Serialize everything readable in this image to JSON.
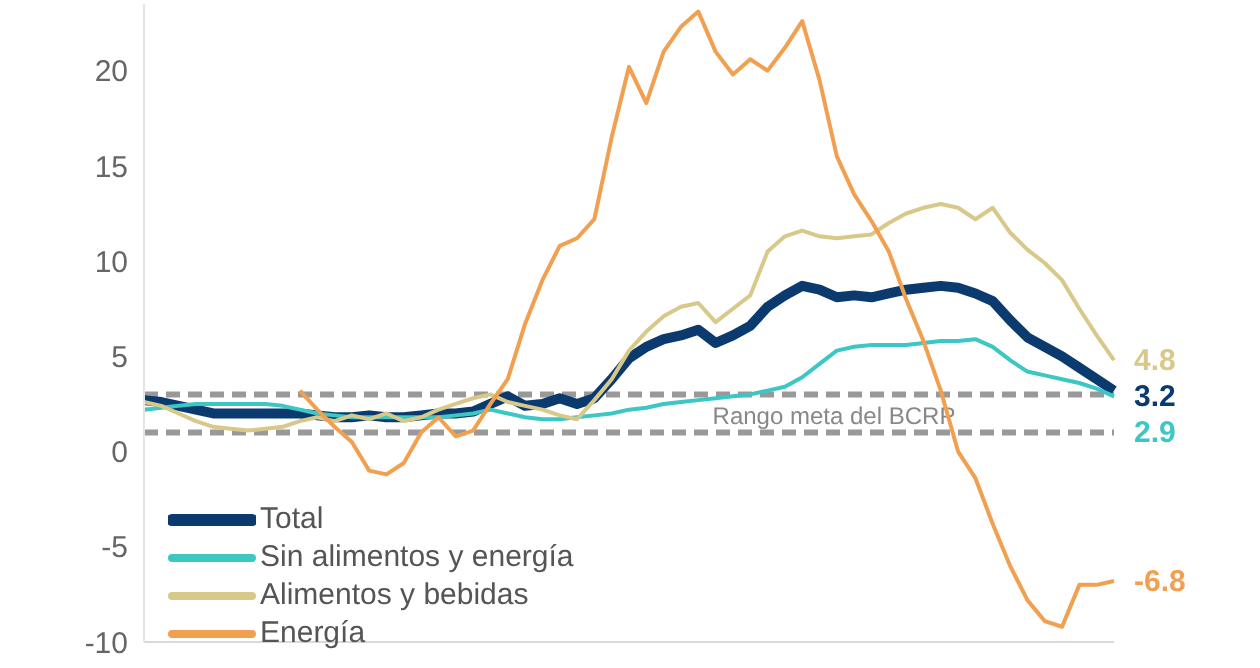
{
  "chart_data": {
    "type": "line",
    "categories": [
      null,
      null,
      null,
      null,
      null,
      null,
      null,
      null,
      null,
      null,
      null,
      null,
      null,
      null,
      null,
      null,
      null,
      null,
      null,
      null,
      null,
      null,
      null,
      null,
      null,
      null,
      null,
      null,
      null,
      null,
      null,
      null,
      null,
      null,
      null,
      null,
      null,
      null,
      null,
      null,
      null,
      null,
      null,
      null,
      null,
      null,
      null,
      null,
      null,
      null,
      null,
      null,
      null,
      null,
      null,
      null,
      null
    ],
    "series": [
      {
        "name": "Total",
        "color": "#0b3a6e",
        "values": [
          2.7,
          2.6,
          2.4,
          2.2,
          2.0,
          2.0,
          2.0,
          2.0,
          2.0,
          2.0,
          1.9,
          1.8,
          1.8,
          1.9,
          1.8,
          1.8,
          1.9,
          2.0,
          2.0,
          2.1,
          2.5,
          2.9,
          2.4,
          2.5,
          2.8,
          2.5,
          2.8,
          3.8,
          4.9,
          5.5,
          5.9,
          6.1,
          6.4,
          5.7,
          6.1,
          6.6,
          7.6,
          8.2,
          8.7,
          8.5,
          8.1,
          8.2,
          8.1,
          8.3,
          8.5,
          8.6,
          8.7,
          8.6,
          8.3,
          7.9,
          6.9,
          6.0,
          5.5,
          5.0,
          4.4,
          3.8,
          3.2
        ],
        "value_labels": [
          null,
          null,
          null,
          null,
          null,
          null,
          null,
          null,
          null,
          null,
          null,
          null,
          null,
          null,
          null,
          null,
          null,
          null,
          null,
          null,
          null,
          null,
          null,
          null,
          null,
          null,
          null,
          null,
          null,
          null,
          null,
          null,
          null,
          null,
          null,
          null,
          null,
          null,
          null,
          null,
          null,
          null,
          null,
          null,
          null,
          null,
          null,
          null,
          null,
          null,
          null,
          null,
          null,
          null,
          null,
          null,
          "3.2"
        ]
      },
      {
        "name": "Sin alimentos y energía",
        "color": "#3cc6c4",
        "values": [
          2.2,
          2.3,
          2.4,
          2.5,
          2.5,
          2.5,
          2.5,
          2.5,
          2.4,
          2.2,
          2.0,
          1.9,
          1.8,
          1.8,
          1.8,
          1.8,
          1.8,
          1.8,
          1.9,
          2.0,
          2.2,
          2.0,
          1.8,
          1.7,
          1.7,
          1.8,
          1.9,
          2.0,
          2.2,
          2.3,
          2.5,
          2.6,
          2.7,
          2.8,
          2.9,
          3.0,
          3.2,
          3.4,
          3.9,
          4.6,
          5.3,
          5.5,
          5.6,
          5.6,
          5.6,
          5.7,
          5.8,
          5.8,
          5.9,
          5.5,
          4.8,
          4.2,
          4.0,
          3.8,
          3.6,
          3.3,
          2.9
        ],
        "value_labels": [
          null,
          null,
          null,
          null,
          null,
          null,
          null,
          null,
          null,
          null,
          null,
          null,
          null,
          null,
          null,
          null,
          null,
          null,
          null,
          null,
          null,
          null,
          null,
          null,
          null,
          null,
          null,
          null,
          null,
          null,
          null,
          null,
          null,
          null,
          null,
          null,
          null,
          null,
          null,
          null,
          null,
          null,
          null,
          null,
          null,
          null,
          null,
          null,
          null,
          null,
          null,
          null,
          null,
          null,
          null,
          null,
          "2.9"
        ]
      },
      {
        "name": "Alimentos y bebidas",
        "color": "#d8c88a",
        "values": [
          2.6,
          2.4,
          2.0,
          1.6,
          1.3,
          1.2,
          1.1,
          1.2,
          1.3,
          1.6,
          1.8,
          1.6,
          1.9,
          1.7,
          2.0,
          1.6,
          1.8,
          2.2,
          2.5,
          2.8,
          3.0,
          2.6,
          2.4,
          2.2,
          1.9,
          1.7,
          2.7,
          3.8,
          5.3,
          6.3,
          7.1,
          7.6,
          7.8,
          6.8,
          7.5,
          8.2,
          10.5,
          11.3,
          11.6,
          11.3,
          11.2,
          11.3,
          11.4,
          12.0,
          12.5,
          12.8,
          13.0,
          12.8,
          12.2,
          12.8,
          11.5,
          10.6,
          9.9,
          9.0,
          7.5,
          6.1,
          4.8
        ],
        "value_labels": [
          null,
          null,
          null,
          null,
          null,
          null,
          null,
          null,
          null,
          null,
          null,
          null,
          null,
          null,
          null,
          null,
          null,
          null,
          null,
          null,
          null,
          null,
          null,
          null,
          null,
          null,
          null,
          null,
          null,
          null,
          null,
          null,
          null,
          null,
          null,
          null,
          null,
          null,
          null,
          null,
          null,
          null,
          null,
          null,
          null,
          null,
          null,
          null,
          null,
          null,
          null,
          null,
          null,
          null,
          null,
          null,
          "4.8"
        ]
      },
      {
        "name": "Energía",
        "color": "#f0a050",
        "values": [
          null,
          null,
          null,
          null,
          null,
          null,
          null,
          null,
          null,
          3.2,
          2.2,
          1.3,
          0.5,
          -1.0,
          -1.2,
          -0.6,
          1.0,
          1.8,
          0.8,
          1.1,
          2.5,
          3.8,
          6.7,
          9.0,
          10.8,
          11.2,
          12.2,
          16.5,
          20.2,
          18.3,
          21.0,
          22.3,
          23.1,
          21.0,
          19.8,
          20.6,
          20.0,
          21.2,
          22.6,
          19.5,
          15.5,
          13.5,
          12.1,
          10.5,
          8.0,
          5.8,
          3.2,
          0.0,
          -1.4,
          -3.8,
          -6.0,
          -7.8,
          -8.9,
          -9.2,
          -7.0,
          -7.0,
          -6.8
        ],
        "value_labels": [
          null,
          null,
          null,
          null,
          null,
          null,
          null,
          null,
          null,
          null,
          null,
          null,
          null,
          null,
          null,
          null,
          null,
          null,
          null,
          null,
          null,
          null,
          null,
          null,
          null,
          null,
          null,
          null,
          null,
          null,
          null,
          null,
          null,
          null,
          null,
          null,
          null,
          null,
          null,
          null,
          null,
          null,
          null,
          null,
          null,
          null,
          null,
          null,
          null,
          null,
          null,
          null,
          null,
          null,
          null,
          null,
          "-6.8"
        ]
      }
    ],
    "ylim": [
      -10,
      23.5
    ],
    "yticks": [
      -10,
      -5,
      0,
      5,
      10,
      15,
      20
    ],
    "ref_lines": [
      {
        "axis": "y",
        "value": 3,
        "label": "Rango meta del BCRP",
        "color": "#999999",
        "line_style": "dashed"
      },
      {
        "axis": "y",
        "value": 1,
        "color": "#999999",
        "line_style": "dashed"
      }
    ],
    "legend": "bottom left",
    "marker": "none",
    "line_style": "solid",
    "grid": false
  }
}
